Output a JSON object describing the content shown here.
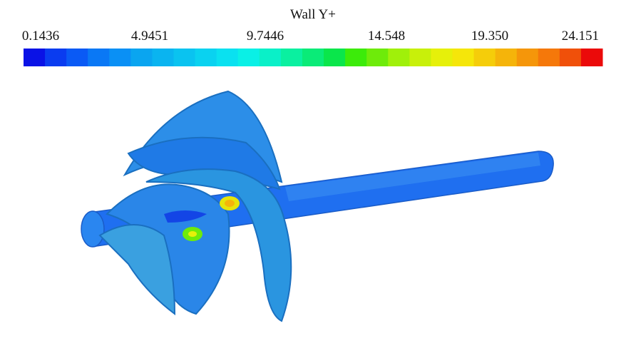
{
  "colorbar": {
    "title": "Wall Y+",
    "labels": [
      "0.1436",
      "4.9451",
      "9.7446",
      "14.548",
      "19.350",
      "24.151"
    ],
    "colors": [
      "#0a12e6",
      "#0a3cf0",
      "#0a5af5",
      "#0a78f5",
      "#0a90f5",
      "#0aa5f0",
      "#0ab4f0",
      "#0ac3f0",
      "#0ad2f0",
      "#0ae1f0",
      "#0af0e6",
      "#0af0c8",
      "#0af0a0",
      "#0aeb78",
      "#0ae64b",
      "#3ceb0a",
      "#6eeb0a",
      "#a0f00a",
      "#c8f00a",
      "#e6f00a",
      "#f5e60a",
      "#f5cd0a",
      "#f5b40a",
      "#f5960a",
      "#f5780a",
      "#f0500a",
      "#eb0a0a"
    ]
  }
}
